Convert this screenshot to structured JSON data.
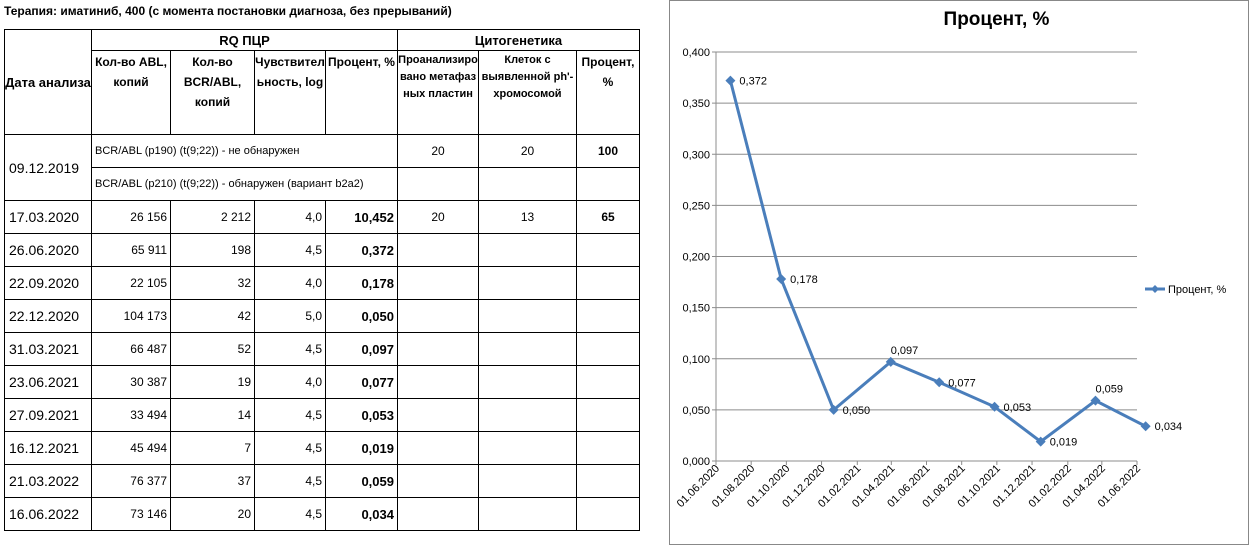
{
  "therapy": "Терапия: иматиниб, 400 (с момента постановки диагноза, без прерываний)",
  "table": {
    "date_header": "Дата анализа",
    "pcr_group": "RQ ПЦР",
    "cyto_group": "Цитогенетика",
    "col_abl": "Кол-во ABL, копий",
    "col_bcr": "Кол-во BCR/ABL, копий",
    "col_sens": "Чувствительность, log",
    "col_pct": "Процент, %",
    "col_meta": "Проанализировано метафазных пластин",
    "col_cells": "Клеток с выявленной ph'-хромосомой",
    "col_cpct": "Процент, %",
    "first_date": "09.12.2019",
    "note_p190": "BCR/ABL (p190) (t(9;22)) - не обнаружен",
    "note_p210": "BCR/ABL (p210) (t(9;22)) - обнаружен (вариант b2a2)",
    "first_meta": "20",
    "first_cells": "20",
    "first_cpct": "100",
    "rows": [
      {
        "date": "17.03.2020",
        "abl": "26 156",
        "bcr": "2 212",
        "sens": "4,0",
        "pct": "10,452",
        "meta": "20",
        "cells": "13",
        "cpct": "65"
      },
      {
        "date": "26.06.2020",
        "abl": "65 911",
        "bcr": "198",
        "sens": "4,5",
        "pct": "0,372",
        "meta": "",
        "cells": "",
        "cpct": ""
      },
      {
        "date": "22.09.2020",
        "abl": "22 105",
        "bcr": "32",
        "sens": "4,0",
        "pct": "0,178",
        "meta": "",
        "cells": "",
        "cpct": ""
      },
      {
        "date": "22.12.2020",
        "abl": "104 173",
        "bcr": "42",
        "sens": "5,0",
        "pct": "0,050",
        "meta": "",
        "cells": "",
        "cpct": ""
      },
      {
        "date": "31.03.2021",
        "abl": "66 487",
        "bcr": "52",
        "sens": "4,5",
        "pct": "0,097",
        "meta": "",
        "cells": "",
        "cpct": ""
      },
      {
        "date": "23.06.2021",
        "abl": "30 387",
        "bcr": "19",
        "sens": "4,0",
        "pct": "0,077",
        "meta": "",
        "cells": "",
        "cpct": ""
      },
      {
        "date": "27.09.2021",
        "abl": "33 494",
        "bcr": "14",
        "sens": "4,5",
        "pct": "0,053",
        "meta": "",
        "cells": "",
        "cpct": ""
      },
      {
        "date": "16.12.2021",
        "abl": "45 494",
        "bcr": "7",
        "sens": "4,5",
        "pct": "0,019",
        "meta": "",
        "cells": "",
        "cpct": ""
      },
      {
        "date": "21.03.2022",
        "abl": "76 377",
        "bcr": "37",
        "sens": "4,5",
        "pct": "0,059",
        "meta": "",
        "cells": "",
        "cpct": ""
      },
      {
        "date": "16.06.2022",
        "abl": "73 146",
        "bcr": "20",
        "sens": "4,5",
        "pct": "0,034",
        "meta": "",
        "cells": "",
        "cpct": ""
      }
    ]
  },
  "chart_data": {
    "type": "line",
    "title": "Процент, %",
    "xlabel": "",
    "ylabel": "",
    "ylim": [
      0,
      0.4
    ],
    "yticks": [
      "0,000",
      "0,050",
      "0,100",
      "0,150",
      "0,200",
      "0,250",
      "0,300",
      "0,350",
      "0,400"
    ],
    "xticks": [
      "01.06.2020",
      "01.08.2020",
      "01.10.2020",
      "01.12.2020",
      "01.02.2021",
      "01.04.2021",
      "01.06.2021",
      "01.08.2021",
      "01.10.2021",
      "01.12.2021",
      "01.02.2022",
      "01.04.2022",
      "01.06.2022"
    ],
    "xlim": [
      "2020-06-01",
      "2022-06-01"
    ],
    "grid": true,
    "legend_position": "right",
    "color": "#4a7ebb",
    "series": [
      {
        "name": "Процент, %",
        "points": [
          {
            "x": "2020-06-26",
            "y": 0.372,
            "label": "0,372"
          },
          {
            "x": "2020-09-22",
            "y": 0.178,
            "label": "0,178"
          },
          {
            "x": "2020-12-22",
            "y": 0.05,
            "label": "0,050"
          },
          {
            "x": "2021-03-31",
            "y": 0.097,
            "label": "0,097"
          },
          {
            "x": "2021-06-23",
            "y": 0.077,
            "label": "0,077"
          },
          {
            "x": "2021-09-27",
            "y": 0.053,
            "label": "0,053"
          },
          {
            "x": "2021-12-16",
            "y": 0.019,
            "label": "0,019"
          },
          {
            "x": "2022-03-21",
            "y": 0.059,
            "label": "0,059"
          },
          {
            "x": "2022-06-16",
            "y": 0.034,
            "label": "0,034"
          }
        ]
      }
    ]
  }
}
